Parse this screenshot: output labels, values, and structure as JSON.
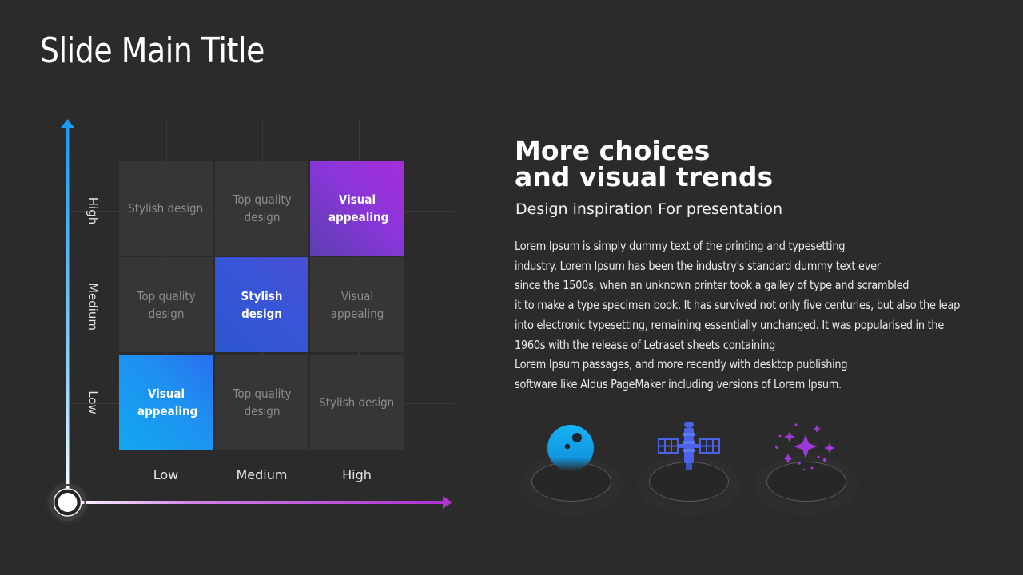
{
  "slide": {
    "title": "Slide Main Title"
  },
  "matrix": {
    "y_axis": [
      "High",
      "Medium",
      "Low"
    ],
    "x_axis": [
      "Low",
      "Medium",
      "High"
    ],
    "rows": [
      [
        "Stylish design",
        "Top quality design",
        "Visual appealing"
      ],
      [
        "Top quality design",
        "Stylish design",
        "Visual appealing"
      ],
      [
        "Visual appealing",
        "Top quality design",
        "Stylish design"
      ]
    ],
    "highlight_colors": {
      "high": "#a52ed8",
      "medium": "#3a55d8",
      "low": "#12a8f0"
    },
    "axis_colors": {
      "y": "#1a9bef",
      "x": "#b030d0"
    }
  },
  "content": {
    "heading_line1": "More choices",
    "heading_line2": "and visual trends",
    "subheading": "Design inspiration For presentation",
    "body_lines": [
      "Lorem Ipsum is simply dummy text of the printing and typesetting",
      "industry. Lorem Ipsum has been the industry's standard dummy text ever",
      "since the 1500s, when an unknown printer took a galley of type and scrambled",
      "it to make a type specimen book. It has survived not only five centuries, but also the leap",
      "into electronic typesetting, remaining essentially unchanged. It was popularised in the",
      "1960s with the release of Letraset sheets containing",
      "Lorem Ipsum passages, and more recently with desktop publishing",
      "software like Aldus PageMaker including versions of Lorem Ipsum."
    ]
  },
  "icons": [
    "planet-icon",
    "satellite-icon",
    "sparkles-icon"
  ]
}
